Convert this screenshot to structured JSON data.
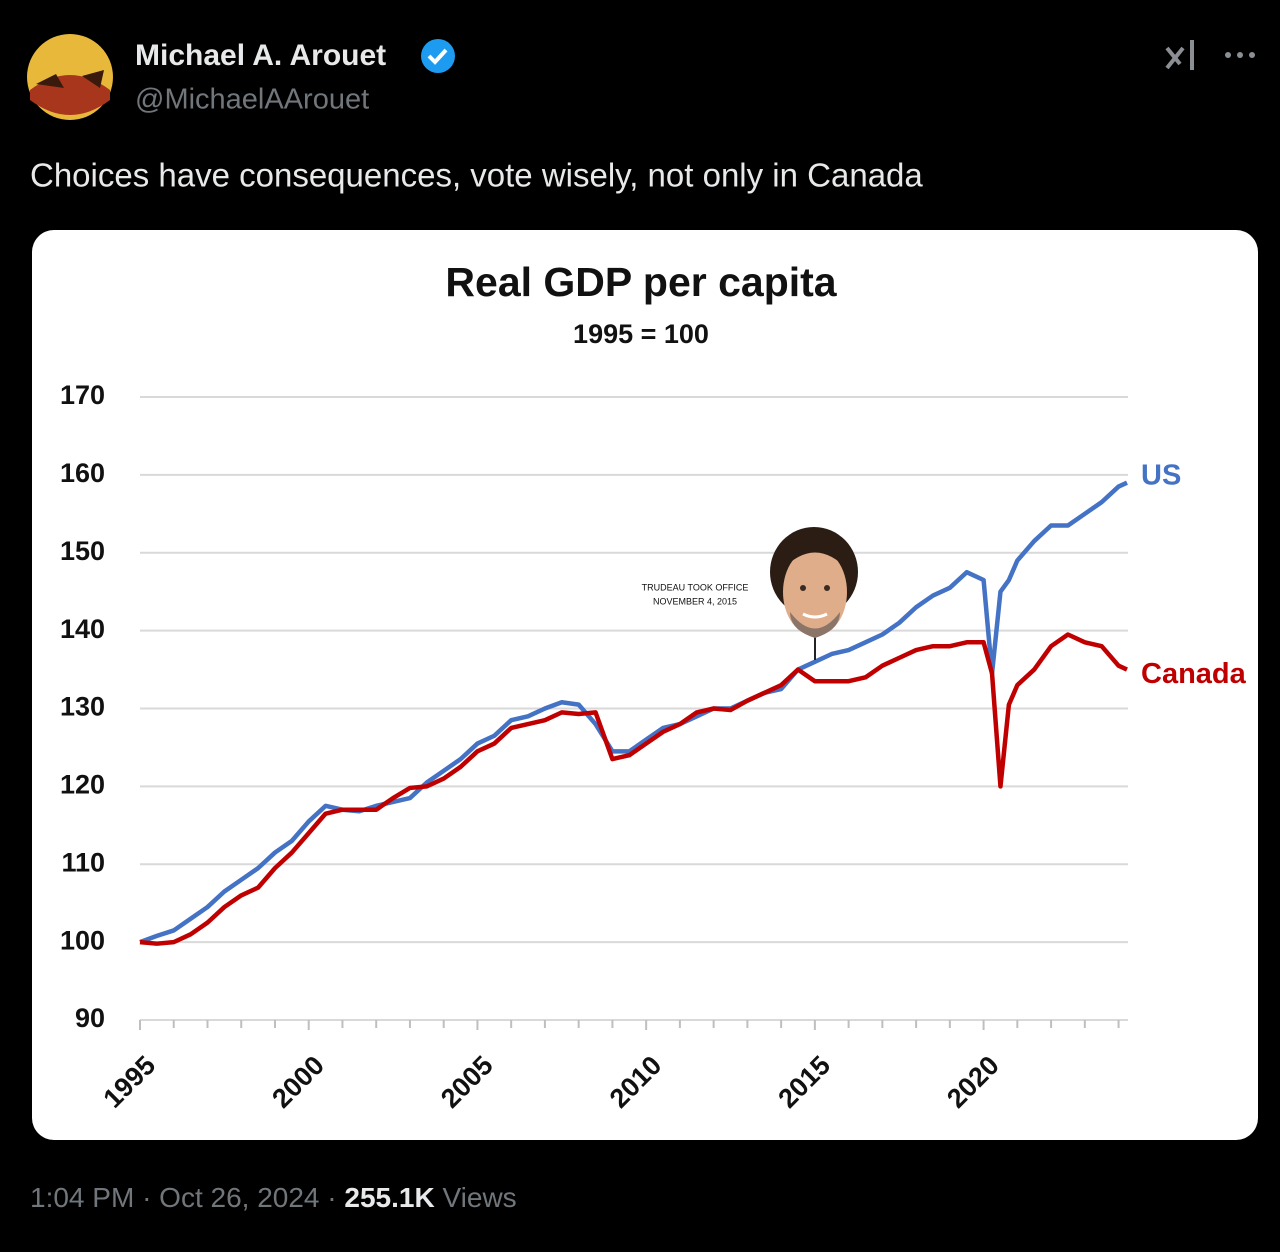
{
  "tweet": {
    "name": "Michael A. Arouet",
    "handle": "@MichaelAArouet",
    "text": "Choices have consequences, vote wisely, not only in Canada",
    "time": "1:04 PM",
    "separator": "·",
    "date": "Oct 26, 2024",
    "views_count": "255.1K",
    "views_label": "Views"
  },
  "chart_data": {
    "type": "line",
    "title": "Real GDP per capita",
    "subtitle": "1995 = 100",
    "annotation": [
      "TRUDEAU TOOK OFFICE",
      "NOVEMBER 4, 2015"
    ],
    "x": [
      1995,
      1995.5,
      1996,
      1996.5,
      1997,
      1997.5,
      1998,
      1998.5,
      1999,
      1999.5,
      2000,
      2000.5,
      2001,
      2001.5,
      2002,
      2002.5,
      2003,
      2003.5,
      2004,
      2004.5,
      2005,
      2005.5,
      2006,
      2006.5,
      2007,
      2007.5,
      2008,
      2008.5,
      2009,
      2009.5,
      2010,
      2010.5,
      2011,
      2011.5,
      2012,
      2012.5,
      2013,
      2013.5,
      2014,
      2014.5,
      2015,
      2015.5,
      2016,
      2016.5,
      2017,
      2017.5,
      2018,
      2018.5,
      2019,
      2019.5,
      2020,
      2020.25,
      2020.5,
      2020.75,
      2021,
      2021.5,
      2022,
      2022.5,
      2023,
      2023.5,
      2024,
      2024.25
    ],
    "series": [
      {
        "name": "US",
        "color": "#4472c4",
        "values": [
          100,
          100.8,
          101.5,
          103,
          104.5,
          106.5,
          108,
          109.5,
          111.5,
          113,
          115.5,
          117.5,
          117,
          116.8,
          117.5,
          118,
          118.5,
          120.5,
          122,
          123.5,
          125.5,
          126.5,
          128.5,
          129,
          130,
          130.8,
          130.5,
          128,
          124.5,
          124.5,
          126,
          127.5,
          128,
          129,
          130,
          130,
          131,
          132,
          132.5,
          135,
          136,
          137,
          137.5,
          138.5,
          139.5,
          141,
          143,
          144.5,
          145.5,
          147.5,
          146.5,
          134.5,
          145,
          146.5,
          149,
          151.5,
          153.5,
          153.5,
          155,
          156.5,
          158.5,
          159
        ]
      },
      {
        "name": "Canada",
        "color": "#c00000",
        "values": [
          100,
          99.8,
          100,
          101,
          102.5,
          104.5,
          106,
          107,
          109.5,
          111.5,
          114,
          116.5,
          117,
          117,
          117,
          118.5,
          119.8,
          120,
          121,
          122.5,
          124.5,
          125.5,
          127.5,
          128,
          128.5,
          129.5,
          129.3,
          129.5,
          123.5,
          124,
          125.5,
          127,
          128,
          129.5,
          130,
          129.8,
          131,
          132,
          133,
          135,
          133.5,
          133.5,
          133.5,
          134,
          135.5,
          136.5,
          137.5,
          138,
          138,
          138.5,
          138.5,
          134.5,
          120,
          130.5,
          133,
          135,
          138,
          139.5,
          138.5,
          138,
          135.5,
          135
        ]
      }
    ],
    "xlim": [
      1995,
      2024.25
    ],
    "xticks": [
      1995,
      2000,
      2005,
      2010,
      2015,
      2020
    ],
    "xminor_ticks": [
      1996,
      1997,
      1998,
      1999,
      2001,
      2002,
      2003,
      2004,
      2006,
      2007,
      2008,
      2009,
      2011,
      2012,
      2013,
      2014,
      2016,
      2017,
      2018,
      2019,
      2021,
      2022,
      2023,
      2024
    ],
    "ylim": [
      90,
      170
    ],
    "yticks": [
      90,
      100,
      110,
      120,
      130,
      140,
      150,
      160,
      170
    ],
    "grid": true
  }
}
